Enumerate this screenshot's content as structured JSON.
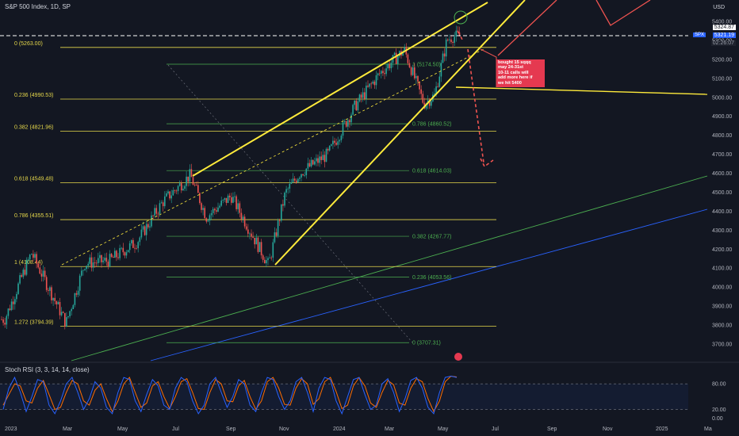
{
  "header": {
    "title": "S&P 500 Index, 1D, SP"
  },
  "price_scale": {
    "currency": "USD",
    "last_price": "5324.87",
    "current_price": "5321.19",
    "countdown": "02:26:07",
    "symbol_tag": "SPX"
  },
  "indicator": {
    "label": "Stoch RSI (3, 3, 14, 14, close)"
  },
  "annotation": {
    "text": "bought 15 sqqq\nmay 24-31st\n10-11 calls will\nadd more here if\nwe hit 5400"
  },
  "colors": {
    "background": "#131722",
    "up_candle": "#26a69a",
    "down_candle": "#ef5350",
    "trendline": "#ffeb3b",
    "fib_large": "#e6d84b",
    "fib_small": "#4caf50",
    "stoch_k": "#2962ff",
    "stoch_d": "#ff6d00",
    "forecast": "#ef5350",
    "channel_green": "#4caf50",
    "channel_blue": "#2962ff"
  },
  "chart_data": [
    {
      "type": "candlestick",
      "title": "S&P 500 Index, 1D, SP",
      "x_ticks": [
        "2023",
        "Mar",
        "May",
        "Jul",
        "Sep",
        "Nov",
        "2024",
        "Mar",
        "May",
        "Jul",
        "Sep",
        "Nov",
        "2025",
        "Ma"
      ],
      "y_ticks": [
        3700,
        3800,
        3900,
        4000,
        4100,
        4200,
        4300,
        4400,
        4500,
        4600,
        4700,
        4800,
        4900,
        5000,
        5100,
        5200,
        5300,
        5400
      ],
      "ylim": [
        3600,
        5450
      ],
      "series": [
        {
          "name": "S&P 500 Index",
          "x": [
            "2023-01-03",
            "2023-02-02",
            "2023-03-13",
            "2023-04-03",
            "2023-05-01",
            "2023-06-01",
            "2023-06-30",
            "2023-07-31",
            "2023-08-18",
            "2023-09-15",
            "2023-10-27",
            "2023-11-15",
            "2023-12-01",
            "2024-01-02",
            "2024-02-01",
            "2024-03-01",
            "2024-03-28",
            "2024-04-19",
            "2024-05-01",
            "2024-05-15",
            "2024-05-21"
          ],
          "values": [
            3830,
            4180,
            3810,
            4125,
            4140,
            4240,
            4450,
            4590,
            4370,
            4480,
            4117,
            4495,
            4600,
            4700,
            4950,
            5130,
            5250,
            4967,
            5010,
            5300,
            5321
          ]
        }
      ],
      "fib_retracement_large": [
        {
          "label": "0 (5263.00)",
          "value": 5263.0
        },
        {
          "label": "0.236 (4990.53)",
          "value": 4990.53
        },
        {
          "label": "0.382 (4821.96)",
          "value": 4821.96
        },
        {
          "label": "0.618 (4549.48)",
          "value": 4549.48
        },
        {
          "label": "0.786 (4355.51)",
          "value": 4355.51
        },
        {
          "label": "1 (4108.44)",
          "value": 4108.44
        },
        {
          "label": "1.272 (3794.39)",
          "value": 3794.39
        }
      ],
      "fib_retracement_small": [
        {
          "label": "1 (5174.50)",
          "value": 5174.5
        },
        {
          "label": "0.786 (4860.52)",
          "value": 4860.52
        },
        {
          "label": "0.618 (4614.03)",
          "value": 4614.03
        },
        {
          "label": "0.382 (4267.77)",
          "value": 4267.77
        },
        {
          "label": "0.236 (4053.56)",
          "value": 4053.56
        },
        {
          "label": "0 (3707.31)",
          "value": 3707.31
        }
      ]
    },
    {
      "type": "line",
      "title": "Stoch RSI (3, 3, 14, 14, close)",
      "y_ticks": [
        0,
        20,
        80
      ],
      "y_tick_labels": [
        "0.00",
        "20.00",
        "80.00"
      ],
      "ylim": [
        -5,
        110
      ],
      "series": [
        {
          "name": "K",
          "values": [
            20,
            70,
            95,
            60,
            15,
            50,
            90,
            85,
            30,
            10,
            40,
            80,
            95,
            60,
            20,
            45,
            85,
            70,
            25,
            10,
            60,
            95,
            90,
            40,
            15,
            55,
            90,
            75,
            30,
            20,
            70,
            95,
            85,
            40,
            10,
            30,
            80,
            95,
            60,
            25,
            50,
            90,
            80,
            30,
            15,
            60,
            95,
            90,
            50,
            20,
            40,
            85,
            95,
            60,
            15,
            70,
            95,
            90,
            40,
            10,
            50,
            90,
            95,
            55,
            20,
            30,
            80,
            92,
            60,
            15,
            45,
            88,
            95,
            70,
            25,
            10,
            60,
            95,
            98,
            95
          ]
        },
        {
          "name": "D",
          "values": [
            30,
            55,
            80,
            75,
            40,
            35,
            70,
            88,
            55,
            20,
            25,
            60,
            88,
            80,
            40,
            30,
            65,
            80,
            45,
            15,
            40,
            80,
            95,
            60,
            25,
            35,
            75,
            85,
            50,
            22,
            50,
            85,
            92,
            60,
            22,
            20,
            60,
            90,
            80,
            40,
            38,
            75,
            88,
            50,
            20,
            40,
            85,
            95,
            70,
            32,
            30,
            70,
            92,
            80,
            32,
            45,
            85,
            95,
            62,
            22,
            30,
            75,
            95,
            75,
            35,
            25,
            60,
            88,
            78,
            35,
            30,
            70,
            92,
            85,
            45,
            15,
            40,
            85,
            98,
            96
          ]
        }
      ]
    }
  ]
}
